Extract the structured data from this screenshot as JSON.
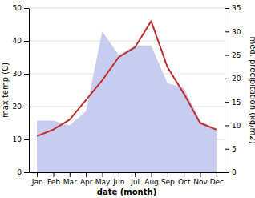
{
  "chart_data": {
    "type": "line",
    "categories": [
      "Jan",
      "Feb",
      "Mar",
      "Apr",
      "May",
      "Jun",
      "Jul",
      "Aug",
      "Sep",
      "Oct",
      "Nov",
      "Dec"
    ],
    "xlabel": "date (month)",
    "ylabel": "max temp (C)",
    "y2label": "med. precipitation (kg/m2)",
    "series": [
      {
        "type": "area",
        "axis": "y2",
        "color": "#c8ccee",
        "values": [
          11,
          11,
          10,
          13,
          30,
          25,
          27,
          27,
          19,
          18,
          11,
          9
        ]
      },
      {
        "type": "line",
        "axis": "y",
        "color": "#c03030",
        "values": [
          11,
          13,
          16,
          22,
          28,
          35,
          38,
          46,
          32,
          24,
          15,
          13
        ]
      }
    ],
    "ylim": [
      0,
      50
    ],
    "yticks": [
      0,
      10,
      20,
      30,
      40,
      50
    ],
    "y2lim": [
      0,
      35
    ],
    "y2ticks": [
      0,
      5,
      10,
      15,
      20,
      25,
      30,
      35
    ],
    "grid": true
  }
}
